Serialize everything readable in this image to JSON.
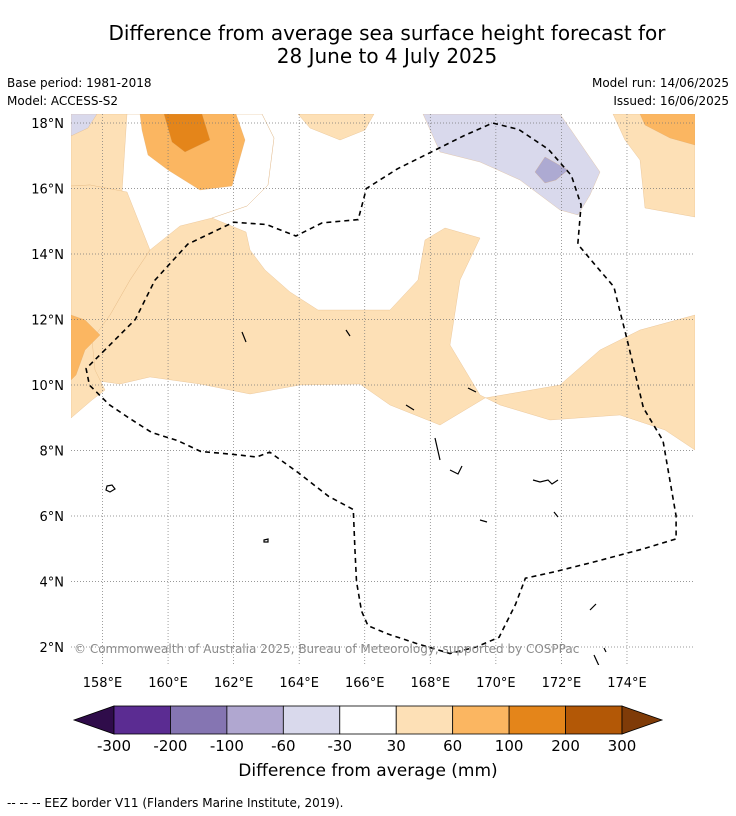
{
  "title": {
    "line1": "Difference from average sea surface height forecast for",
    "line2": "28 June to 4 July 2025"
  },
  "meta": {
    "base_period": "Base period: 1981-2018",
    "model": "Model: ACCESS-S2",
    "model_run": "Model run: 14/06/2025",
    "issued": "Issued: 16/06/2025"
  },
  "map": {
    "lon_range": [
      157,
      176
    ],
    "lat_range": [
      1.5,
      18.3
    ],
    "lat_ticks": [
      {
        "value": 2,
        "label": "2°N"
      },
      {
        "value": 4,
        "label": "4°N"
      },
      {
        "value": 6,
        "label": "6°N"
      },
      {
        "value": 8,
        "label": "8°N"
      },
      {
        "value": 10,
        "label": "10°N"
      },
      {
        "value": 12,
        "label": "12°N"
      },
      {
        "value": 14,
        "label": "14°N"
      },
      {
        "value": 16,
        "label": "16°N"
      },
      {
        "value": 18,
        "label": "18°N"
      }
    ],
    "lon_ticks": [
      {
        "value": 158,
        "label": "158°E"
      },
      {
        "value": 160,
        "label": "160°E"
      },
      {
        "value": 162,
        "label": "162°E"
      },
      {
        "value": 164,
        "label": "164°E"
      },
      {
        "value": 166,
        "label": "166°E"
      },
      {
        "value": 168,
        "label": "168°E"
      },
      {
        "value": 170,
        "label": "170°E"
      },
      {
        "value": 172,
        "label": "172°E"
      },
      {
        "value": 174,
        "label": "174°E"
      }
    ],
    "copyright": "© Commonwealth of Australia 2025, Bureau of Meteorology, supported by COSPPac",
    "colors": {
      "c30_60": "#fde0b6",
      "c60_100": "#fbb661",
      "c100_200": "#e4851a",
      "cm60_m30": "#d9d9ec",
      "cm100_m60": "#adaad2"
    },
    "eez_border": [
      [
        158.0,
        11.0
      ],
      [
        159.0,
        12.0
      ],
      [
        159.6,
        13.2
      ],
      [
        160.6,
        14.3
      ],
      [
        162.0,
        14.97
      ],
      [
        163.0,
        14.9
      ],
      [
        163.9,
        14.55
      ],
      [
        164.7,
        14.95
      ],
      [
        165.8,
        15.05
      ],
      [
        166.05,
        16.0
      ],
      [
        167.0,
        16.6
      ],
      [
        168.0,
        17.1
      ],
      [
        169.0,
        17.6
      ],
      [
        169.9,
        18.0
      ],
      [
        170.7,
        17.8
      ],
      [
        171.6,
        17.2
      ],
      [
        172.3,
        16.4
      ],
      [
        172.6,
        15.5
      ],
      [
        172.5,
        14.3
      ],
      [
        173.0,
        13.7
      ],
      [
        173.6,
        13.0
      ],
      [
        173.7,
        12.6
      ],
      [
        174.0,
        11.4
      ],
      [
        174.5,
        9.3
      ],
      [
        175.1,
        8.3
      ],
      [
        175.5,
        6.0
      ],
      [
        175.5,
        5.3
      ],
      [
        174.5,
        5.0
      ],
      [
        173.0,
        4.6
      ],
      [
        171.8,
        4.3
      ],
      [
        170.9,
        4.1
      ],
      [
        170.6,
        3.3
      ],
      [
        170.1,
        2.3
      ],
      [
        169.4,
        2.0
      ],
      [
        168.6,
        1.8
      ],
      [
        167.6,
        2.1
      ],
      [
        166.7,
        2.4
      ],
      [
        166.1,
        2.65
      ],
      [
        165.9,
        3.1
      ],
      [
        165.75,
        4.0
      ],
      [
        165.7,
        5.0
      ],
      [
        165.65,
        6.2
      ],
      [
        164.9,
        6.6
      ],
      [
        164.0,
        7.3
      ],
      [
        163.1,
        7.95
      ],
      [
        162.7,
        7.8
      ],
      [
        162.0,
        7.88
      ],
      [
        161.0,
        7.97
      ],
      [
        160.3,
        8.3
      ],
      [
        159.5,
        8.55
      ],
      [
        158.8,
        9.0
      ],
      [
        158.2,
        9.4
      ],
      [
        157.6,
        10.0
      ],
      [
        157.5,
        10.5
      ],
      [
        158.0,
        11.0
      ]
    ]
  },
  "colorbar": {
    "colors": [
      "#2f0c4a",
      "#5b2c92",
      "#8575b2",
      "#b0a7d0",
      "#d9d9ec",
      "#ffffff",
      "#fde0b6",
      "#fbb661",
      "#e4851a",
      "#b35806",
      "#7f3b08"
    ],
    "labels": [
      "-300",
      "-200",
      "-100",
      "-60",
      "-30",
      "30",
      "60",
      "100",
      "200",
      "300"
    ],
    "title": "Difference from average (mm)"
  },
  "footnote": "--  --  -- EEZ border V11 (Flanders Marine Institute, 2019)."
}
